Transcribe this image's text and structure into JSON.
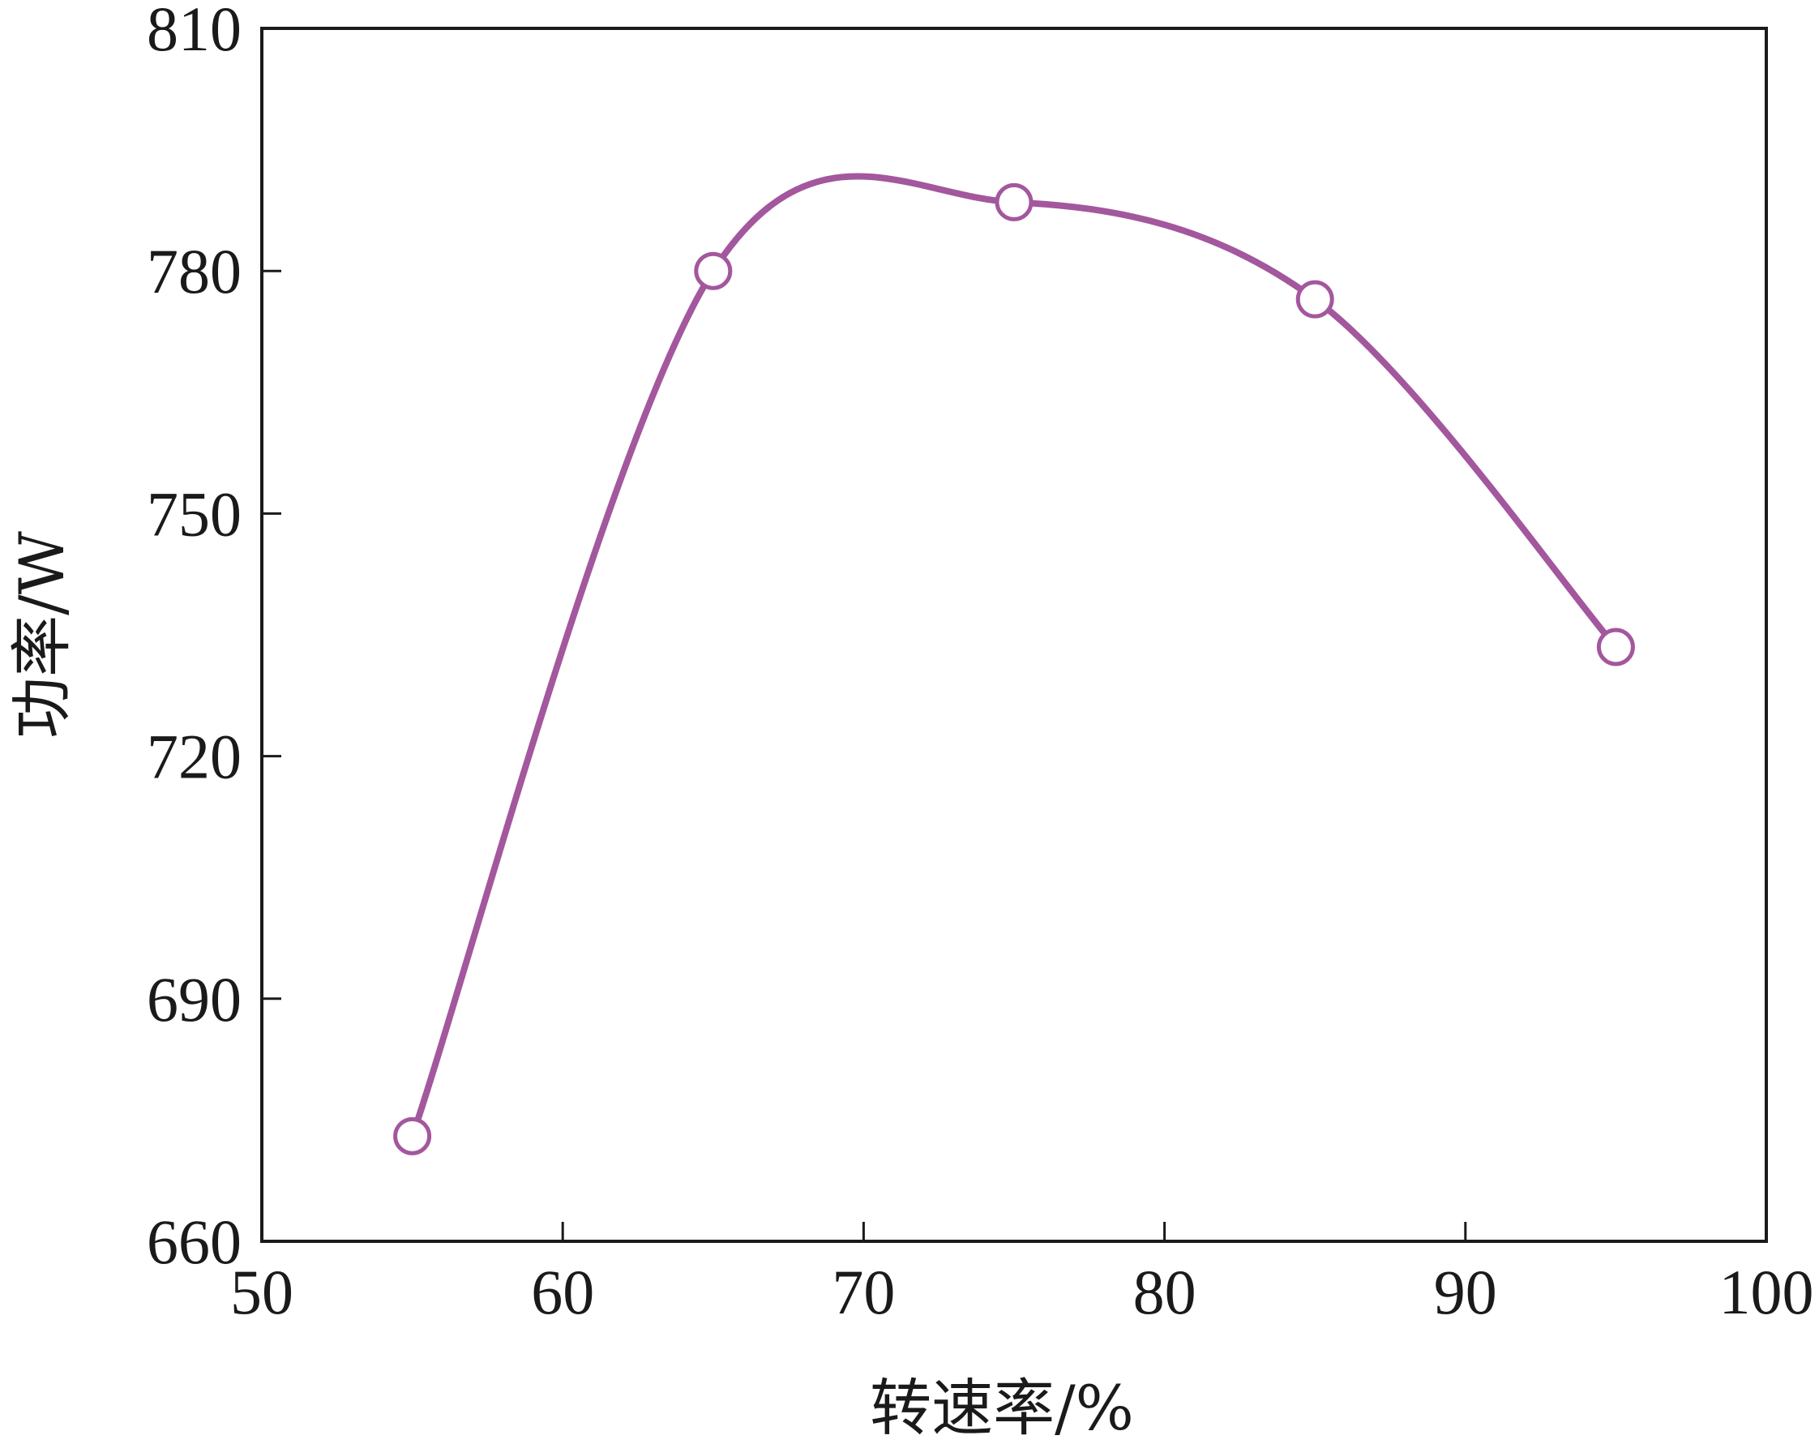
{
  "chart_data": {
    "type": "line",
    "title": "",
    "xlabel": "转速率/%",
    "ylabel": "功率/W",
    "x": [
      55,
      65,
      75,
      85,
      95
    ],
    "series": [
      {
        "values": [
          673,
          780,
          788.5,
          776.5,
          733.5
        ]
      }
    ],
    "xlim": [
      50,
      100
    ],
    "ylim": [
      660,
      810
    ],
    "xticks": [
      50,
      60,
      70,
      80,
      90,
      100
    ],
    "yticks": [
      660,
      690,
      720,
      750,
      780,
      810
    ],
    "xtick_labels": [
      "50",
      "60",
      "70",
      "80",
      "90",
      "100"
    ],
    "ytick_labels": [
      "660",
      "690",
      "720",
      "750",
      "780",
      "810"
    ],
    "grid": false,
    "legend": "none",
    "line_color": "#a3579d",
    "marker": "open-circle",
    "smooth": true
  }
}
